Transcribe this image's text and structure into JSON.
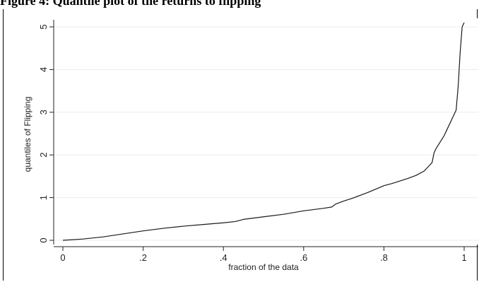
{
  "caption": {
    "text": "Figure 4: Quantile plot of the returns to flipping"
  },
  "chart_data": {
    "type": "line",
    "title": "",
    "xlabel": "fraction of the data",
    "ylabel": "quantiles of Flipping",
    "xlim": [
      0,
      1
    ],
    "ylim": [
      0,
      5
    ],
    "x_ticks": [
      {
        "value": 0,
        "label": "0"
      },
      {
        "value": 0.2,
        "label": ".2"
      },
      {
        "value": 0.4,
        "label": ".4"
      },
      {
        "value": 0.6,
        "label": ".6"
      },
      {
        "value": 0.8,
        "label": ".8"
      },
      {
        "value": 1,
        "label": "1"
      }
    ],
    "y_ticks": [
      {
        "value": 0,
        "label": "0"
      },
      {
        "value": 1,
        "label": "1"
      },
      {
        "value": 2,
        "label": "2"
      },
      {
        "value": 3,
        "label": "3"
      },
      {
        "value": 4,
        "label": "4"
      },
      {
        "value": 5,
        "label": "5"
      }
    ],
    "grid": "horizontal",
    "series": [
      {
        "color": "#1a1a1a",
        "x": [
          0.0,
          0.05,
          0.1,
          0.15,
          0.2,
          0.25,
          0.3,
          0.35,
          0.4,
          0.43,
          0.45,
          0.5,
          0.55,
          0.6,
          0.65,
          0.67,
          0.68,
          0.7,
          0.72,
          0.74,
          0.76,
          0.78,
          0.8,
          0.82,
          0.84,
          0.86,
          0.88,
          0.9,
          0.91,
          0.92,
          0.925,
          0.93,
          0.94,
          0.95,
          0.96,
          0.97,
          0.98,
          0.985,
          0.99,
          0.995,
          1.0
        ],
        "y": [
          0.0,
          0.03,
          0.08,
          0.15,
          0.22,
          0.28,
          0.33,
          0.37,
          0.41,
          0.44,
          0.49,
          0.55,
          0.61,
          0.69,
          0.75,
          0.78,
          0.85,
          0.92,
          0.98,
          1.05,
          1.12,
          1.2,
          1.28,
          1.33,
          1.39,
          1.45,
          1.52,
          1.62,
          1.72,
          1.82,
          2.05,
          2.15,
          2.3,
          2.45,
          2.65,
          2.85,
          3.05,
          3.6,
          4.4,
          5.0,
          5.1
        ]
      }
    ]
  }
}
